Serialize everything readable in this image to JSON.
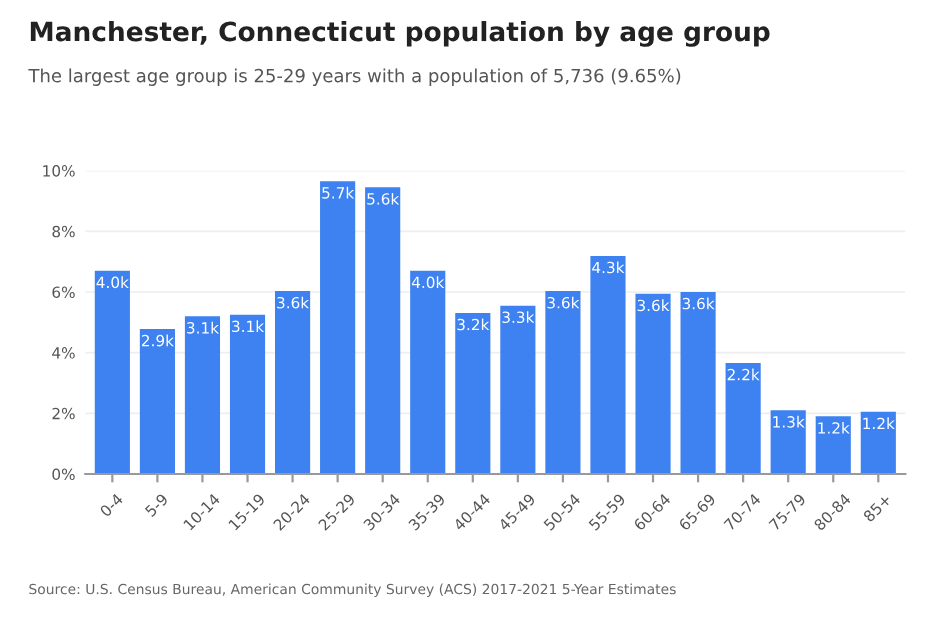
{
  "chart_data": {
    "type": "bar",
    "title": "Manchester, Connecticut population by age group",
    "subtitle": "The largest age group is 25-29 years with a population of 5,736 (9.65%)",
    "categories": [
      "0-4",
      "5-9",
      "10-14",
      "15-19",
      "20-24",
      "25-29",
      "30-34",
      "35-39",
      "40-44",
      "45-49",
      "50-54",
      "55-59",
      "60-64",
      "65-69",
      "70-74",
      "75-79",
      "80-84",
      "85+"
    ],
    "values": [
      6.7,
      4.78,
      5.2,
      5.25,
      6.03,
      9.65,
      9.45,
      6.7,
      5.31,
      5.55,
      6.03,
      7.19,
      5.94,
      6.0,
      3.66,
      2.1,
      1.9,
      2.05
    ],
    "color": "#3d82f0",
    "ylim": [
      0,
      10
    ],
    "yticks": [
      {
        "value": 0,
        "label": "0%"
      },
      {
        "value": 2,
        "label": "2%"
      },
      {
        "value": 4,
        "label": "4%"
      },
      {
        "value": 6,
        "label": "6%"
      },
      {
        "value": 8,
        "label": "8%"
      },
      {
        "value": 10,
        "label": "10%"
      }
    ],
    "grid": "y",
    "annotations": [
      {
        "text": "4.0k",
        "x": "0-4",
        "y": 6.7
      },
      {
        "text": "2.9k",
        "x": "5-9",
        "y": 4.78
      },
      {
        "text": "3.1k",
        "x": "10-14",
        "y": 5.2
      },
      {
        "text": "3.1k",
        "x": "15-19",
        "y": 5.25
      },
      {
        "text": "3.6k",
        "x": "20-24",
        "y": 6.03
      },
      {
        "text": "5.7k",
        "x": "25-29",
        "y": 9.65
      },
      {
        "text": "5.6k",
        "x": "30-34",
        "y": 9.45
      },
      {
        "text": "4.0k",
        "x": "35-39",
        "y": 6.7
      },
      {
        "text": "3.2k",
        "x": "40-44",
        "y": 5.31
      },
      {
        "text": "3.3k",
        "x": "45-49",
        "y": 5.55
      },
      {
        "text": "3.6k",
        "x": "50-54",
        "y": 6.03
      },
      {
        "text": "4.3k",
        "x": "55-59",
        "y": 7.19
      },
      {
        "text": "3.6k",
        "x": "60-64",
        "y": 5.94
      },
      {
        "text": "3.6k",
        "x": "65-69",
        "y": 6.0
      },
      {
        "text": "2.2k",
        "x": "70-74",
        "y": 3.66
      },
      {
        "text": "1.3k",
        "x": "75-79",
        "y": 2.1
      },
      {
        "text": "1.2k",
        "x": "80-84",
        "y": 1.9
      },
      {
        "text": "1.2k",
        "x": "85+",
        "y": 2.05
      },
      "Source: U.S. Census Bureau, American Community Survey (ACS) 2017-2021 5-Year Estimates"
    ]
  }
}
